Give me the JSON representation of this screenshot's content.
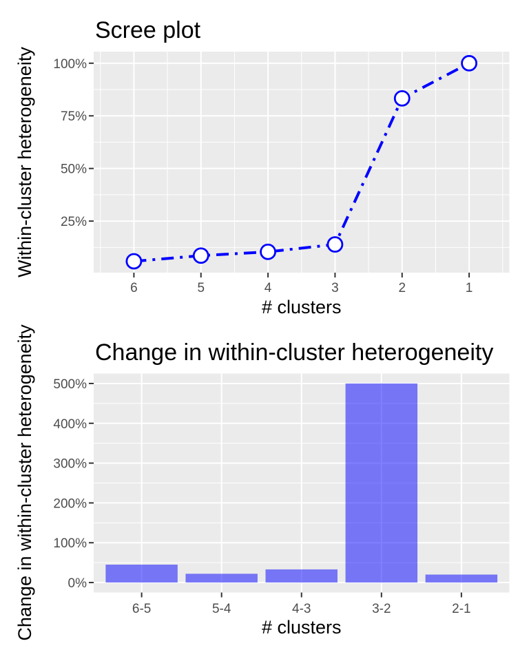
{
  "page": {
    "background": "#FFFFFF"
  },
  "colors": {
    "panel_background": "#EBEBEB",
    "gridline": "#FFFFFF",
    "tick_mark": "#333333",
    "tick_label": "#4D4D4D",
    "text": "#000000",
    "line": "#0000FF",
    "marker_fill": "#FFFFFF",
    "bar_fill": "rgba(0,0,255,0.5)"
  },
  "chart_data": [
    {
      "type": "line",
      "title": "Scree plot",
      "xlabel": "# clusters",
      "ylabel": "Within-cluster heterogeneity",
      "x": [
        6,
        5,
        4,
        3,
        2,
        1
      ],
      "values": [
        5.9,
        8.6,
        10.4,
        13.9,
        83.3,
        100
      ],
      "x_tick_labels": [
        "6",
        "5",
        "4",
        "3",
        "2",
        "1"
      ],
      "y_ticks": [
        25,
        50,
        75,
        100
      ],
      "y_tick_labels": [
        "25%",
        "50%",
        "75%",
        "100%"
      ],
      "xlim": [
        6.6,
        0.4
      ],
      "ylim": [
        0.5,
        105.5
      ],
      "x_minor": [
        6.5,
        5.5,
        4.5,
        3.5,
        2.5,
        1.5,
        0.5
      ],
      "y_minor": [
        12.5,
        37.5,
        62.5,
        87.5
      ],
      "x_axis_reversed": true,
      "grid": "on",
      "legend": "none",
      "unit": "percent",
      "line_style": "dash-dot",
      "marker": "open-circle"
    },
    {
      "type": "bar",
      "title": "Change in within-cluster heterogeneity",
      "xlabel": "# clusters",
      "ylabel": "Change in within-cluster heterogeneity",
      "categories": [
        "6-5",
        "5-4",
        "4-3",
        "3-2",
        "2-1"
      ],
      "values": [
        45,
        22,
        33,
        500,
        20
      ],
      "y_ticks": [
        0,
        100,
        200,
        300,
        400,
        500
      ],
      "y_tick_labels": [
        "0%",
        "100%",
        "200%",
        "300%",
        "400%",
        "500%"
      ],
      "ylim": [
        -25,
        525
      ],
      "y_minor": [
        50,
        150,
        250,
        350,
        450
      ],
      "grid": "on",
      "legend": "none",
      "unit": "percent"
    }
  ]
}
